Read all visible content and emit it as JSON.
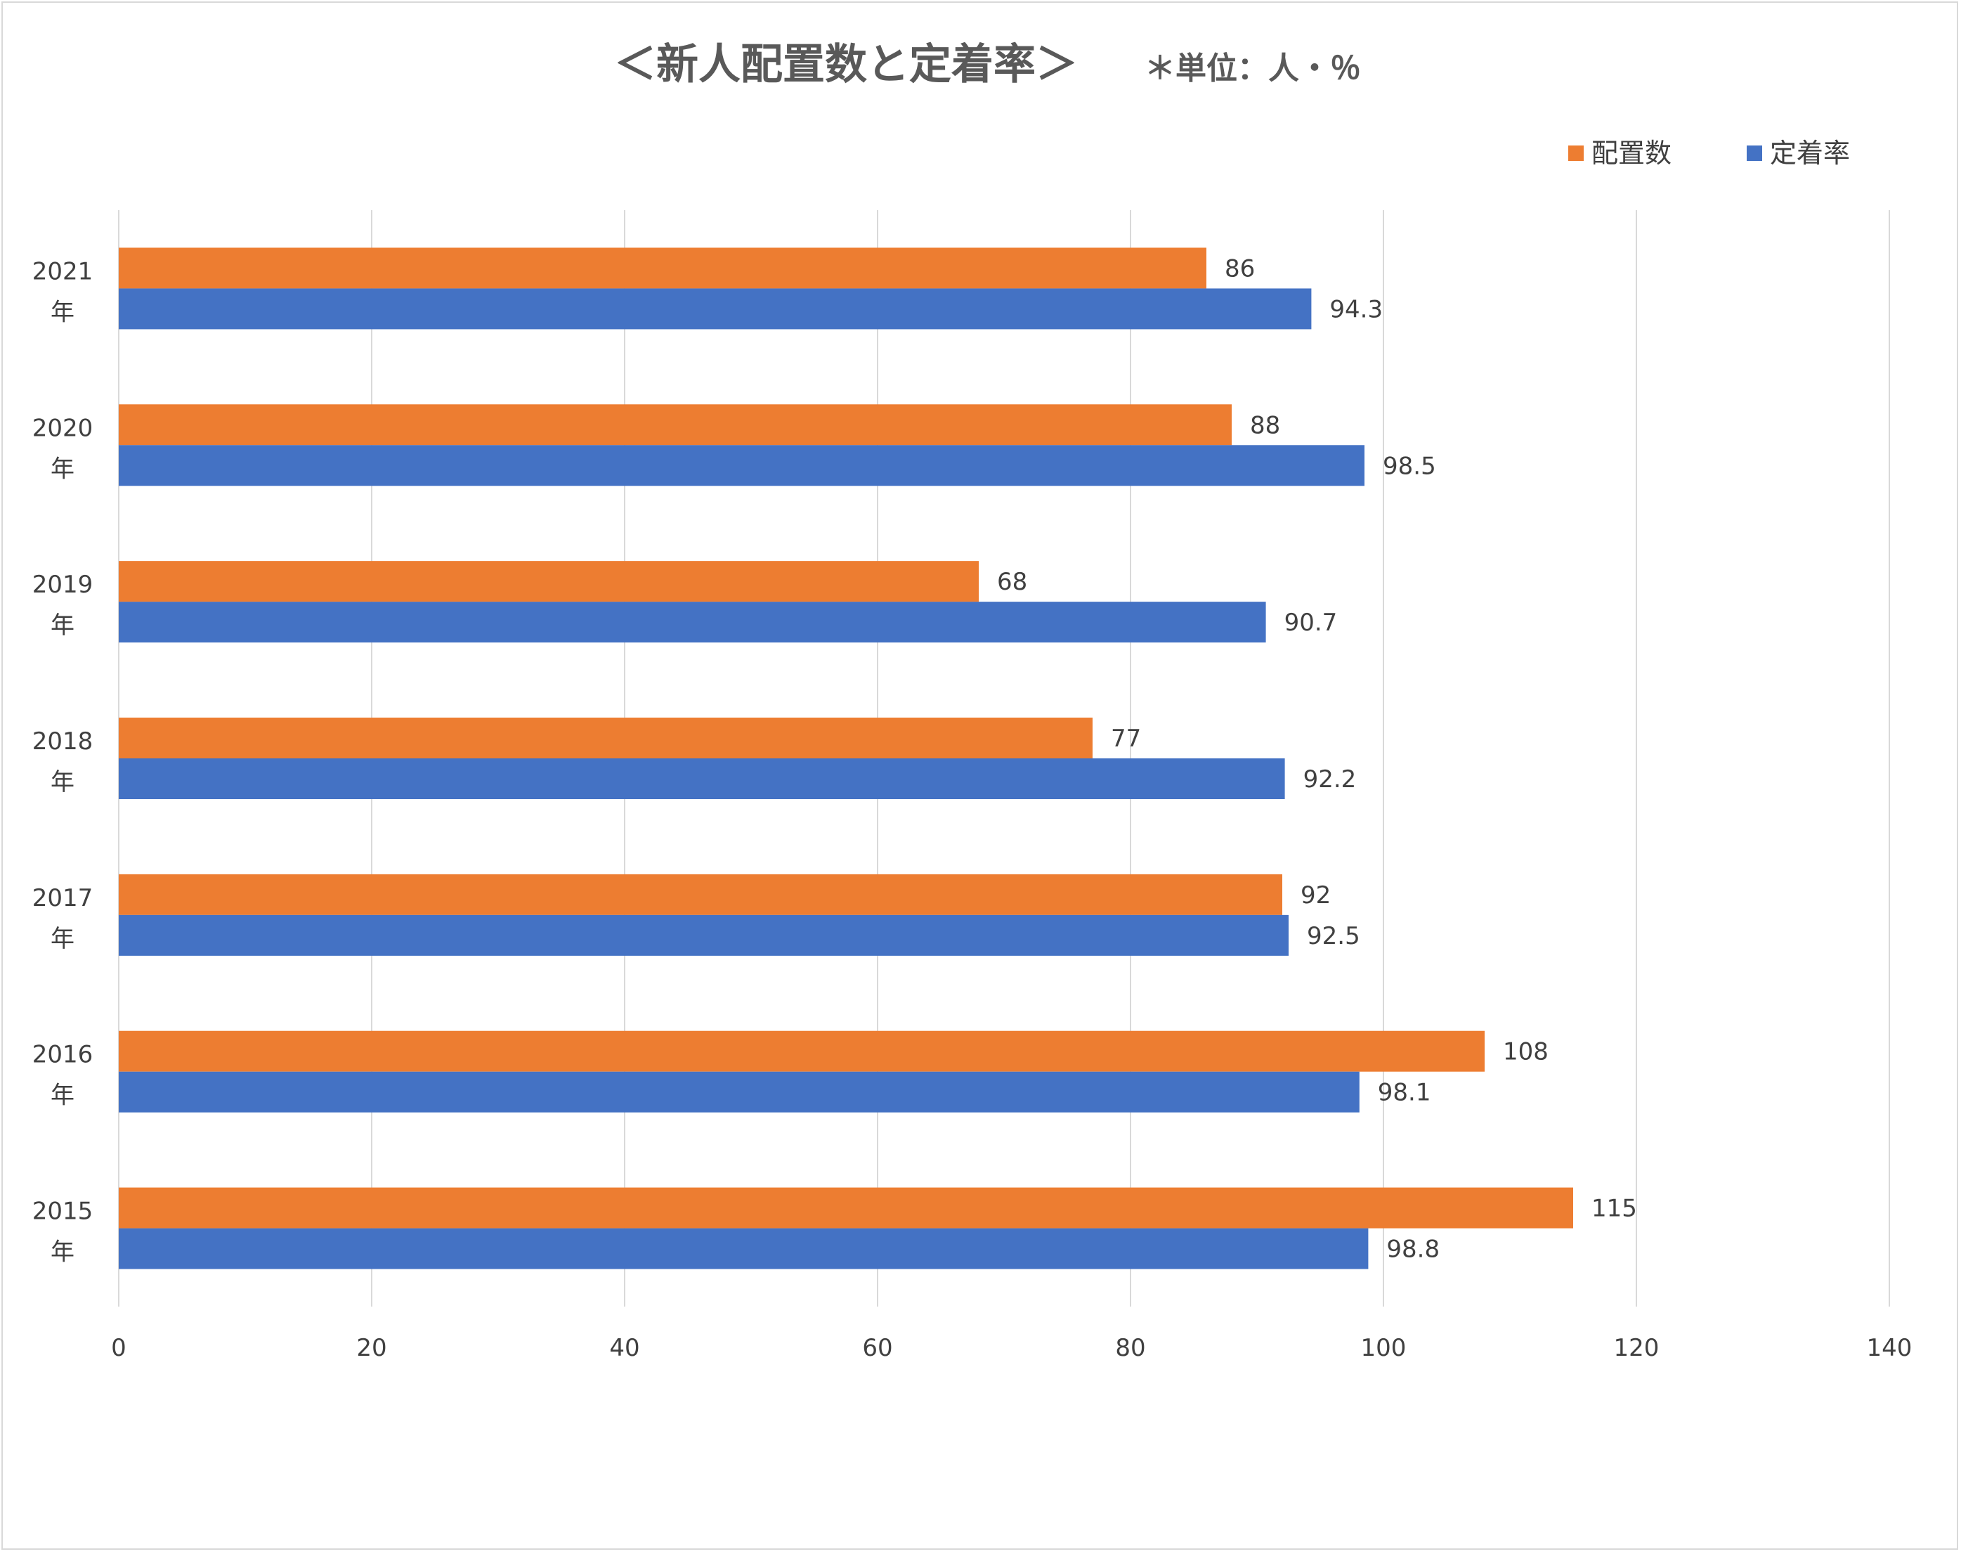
{
  "chart_data": {
    "type": "bar",
    "orientation": "horizontal",
    "title": "＜新人配置数と定着率＞",
    "subtitle": "＊単位：人・％",
    "categories": [
      "2021年",
      "2020年",
      "2019年",
      "2018年",
      "2017年",
      "2016年",
      "2015年"
    ],
    "category_lines": [
      [
        "2021",
        "年"
      ],
      [
        "2020",
        "年"
      ],
      [
        "2019",
        "年"
      ],
      [
        "2018",
        "年"
      ],
      [
        "2017",
        "年"
      ],
      [
        "2016",
        "年"
      ],
      [
        "2015",
        "年"
      ]
    ],
    "series": [
      {
        "name": "配置数",
        "color": "#ED7D31",
        "values": [
          86,
          88,
          68,
          77,
          92,
          108,
          115
        ],
        "labels": [
          "86",
          "88",
          "68",
          "77",
          "92",
          "108",
          "115"
        ]
      },
      {
        "name": "定着率",
        "color": "#4472C4",
        "values": [
          94.3,
          98.5,
          90.7,
          92.2,
          92.5,
          98.1,
          98.8
        ],
        "labels": [
          "94.3",
          "98.5",
          "90.7",
          "92.2",
          "92.5",
          "98.1",
          "98.8"
        ]
      }
    ],
    "xlim": [
      0,
      140
    ],
    "xticks": [
      "0",
      "20",
      "40",
      "60",
      "80",
      "100",
      "120",
      "140"
    ],
    "xtick_values": [
      0,
      20,
      40,
      60,
      80,
      100,
      120,
      140
    ],
    "grid": "vertical",
    "legend_position": "top-right",
    "data_labels": true
  }
}
